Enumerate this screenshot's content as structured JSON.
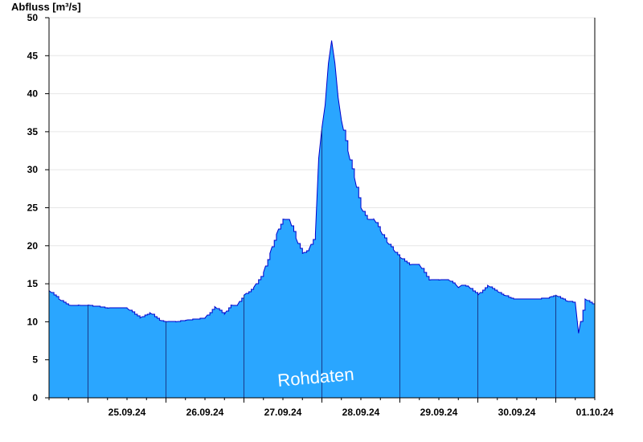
{
  "chart_data": {
    "type": "area",
    "ylabel": "Abfluss [m³/s]",
    "ylim": [
      0,
      50
    ],
    "yticks": [
      0,
      5,
      10,
      15,
      20,
      25,
      30,
      35,
      40,
      45,
      50
    ],
    "xlim": [
      "2024-09-24T12:00",
      "2024-10-01T12:00"
    ],
    "day_boundaries": [
      "2024-09-25T00:00",
      "2024-09-26T00:00",
      "2024-09-27T00:00",
      "2024-09-28T00:00",
      "2024-09-29T00:00",
      "2024-09-30T00:00",
      "2024-10-01T00:00"
    ],
    "xtick_labels": [
      {
        "label": "25.09.24",
        "x": "2024-09-25T12:00"
      },
      {
        "label": "26.09.24",
        "x": "2024-09-26T12:00"
      },
      {
        "label": "27.09.24",
        "x": "2024-09-27T12:00"
      },
      {
        "label": "28.09.24",
        "x": "2024-09-28T12:00"
      },
      {
        "label": "29.09.24",
        "x": "2024-09-29T12:00"
      },
      {
        "label": "30.09.24",
        "x": "2024-09-30T12:00"
      },
      {
        "label": "01.10.24",
        "x": "2024-10-01T12:00"
      }
    ],
    "grid": true,
    "fill_color": "#2aa6ff",
    "line_color": "#0000cc",
    "annotation": "Rohdaten",
    "series": [
      {
        "x": [
          "2024-09-24T12:00",
          "2024-09-24T15:00",
          "2024-09-24T18:00",
          "2024-09-24T21:00",
          "2024-09-25T00:00",
          "2024-09-25T06:00",
          "2024-09-25T12:00",
          "2024-09-25T16:00",
          "2024-09-25T19:00",
          "2024-09-25T22:00",
          "2024-09-26T00:00",
          "2024-09-26T03:00",
          "2024-09-26T06:00",
          "2024-09-26T12:00",
          "2024-09-26T15:00",
          "2024-09-26T18:00",
          "2024-09-26T20:00",
          "2024-09-26T22:00",
          "2024-09-27T00:00",
          "2024-09-27T03:00",
          "2024-09-27T06:00",
          "2024-09-27T08:00",
          "2024-09-27T10:00",
          "2024-09-27T12:00",
          "2024-09-27T14:00",
          "2024-09-27T16:00",
          "2024-09-27T18:00",
          "2024-09-27T20:00",
          "2024-09-27T22:00",
          "2024-09-27T23:00",
          "2024-09-28T00:00",
          "2024-09-28T01:00",
          "2024-09-28T02:00",
          "2024-09-28T03:00",
          "2024-09-28T04:00",
          "2024-09-28T05:00",
          "2024-09-28T06:00",
          "2024-09-28T08:00",
          "2024-09-28T10:00",
          "2024-09-28T12:00",
          "2024-09-28T14:00",
          "2024-09-28T16:00",
          "2024-09-28T18:00",
          "2024-09-28T20:00",
          "2024-09-28T22:00",
          "2024-09-29T00:00",
          "2024-09-29T03:00",
          "2024-09-29T06:00",
          "2024-09-29T09:00",
          "2024-09-29T12:00",
          "2024-09-29T15:00",
          "2024-09-29T17:00",
          "2024-09-29T18:00",
          "2024-09-29T19:00",
          "2024-09-29T21:00",
          "2024-09-30T00:00",
          "2024-09-30T03:00",
          "2024-09-30T06:00",
          "2024-09-30T08:00",
          "2024-09-30T11:00",
          "2024-09-30T14:00",
          "2024-09-30T18:00",
          "2024-09-30T22:00",
          "2024-10-01T00:00",
          "2024-10-01T03:00",
          "2024-10-01T06:00",
          "2024-10-01T07:00",
          "2024-10-01T09:00",
          "2024-10-01T12:00"
        ],
        "y": [
          14.1,
          13.0,
          12.2,
          12.2,
          12.2,
          11.8,
          11.8,
          10.5,
          11.2,
          10.2,
          10.0,
          10.0,
          10.2,
          10.5,
          12.0,
          11.0,
          12.2,
          12.2,
          13.5,
          14.5,
          16.5,
          19.0,
          21.5,
          23.5,
          23.5,
          21.0,
          19.0,
          19.5,
          21.5,
          31.5,
          35.5,
          38.5,
          44.0,
          47.0,
          44.0,
          39.5,
          36.5,
          32.5,
          29.0,
          25.0,
          23.5,
          23.5,
          22.0,
          20.5,
          19.5,
          18.5,
          17.5,
          17.5,
          15.5,
          15.5,
          15.5,
          15.0,
          14.5,
          14.8,
          14.7,
          13.5,
          14.8,
          14.0,
          13.5,
          13.0,
          13.0,
          13.0,
          13.2,
          13.5,
          12.8,
          12.5,
          8.5,
          13.0,
          12.2
        ]
      }
    ]
  }
}
